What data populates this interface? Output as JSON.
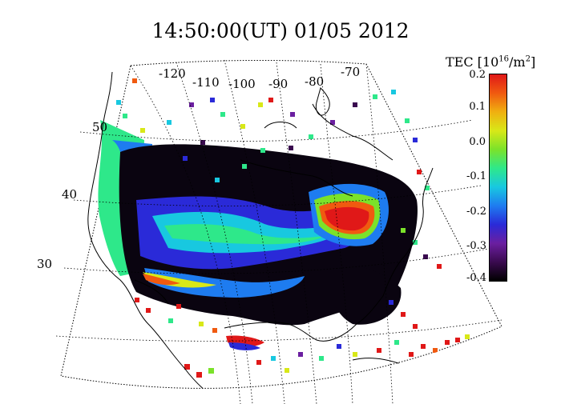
{
  "title": "14:50:00(UT)  01/05 2012",
  "colorbar": {
    "label_prefix": "TEC [10",
    "label_exp": "16",
    "label_suffix": "/m",
    "label_exp2": "2",
    "label_close": "]",
    "ticks": [
      "0.2",
      "0.1",
      "0.0",
      "-0.1",
      "-0.2",
      "-0.3",
      "-0.4"
    ],
    "range": [
      -0.4,
      0.2
    ],
    "colors": [
      "#000000",
      "#3a0a4f",
      "#6b1fa0",
      "#2a2ad8",
      "#1e7cf0",
      "#18c8e0",
      "#2ee88a",
      "#7be22a",
      "#d8e818",
      "#f0b010",
      "#f05a10",
      "#e01818"
    ]
  },
  "map": {
    "longitude_labels": [
      "-120",
      "-110",
      "-100",
      "-90",
      "-80",
      "-70"
    ],
    "latitude_labels": [
      "50",
      "40",
      "30"
    ],
    "graticule": "dotted",
    "coastlines": "black"
  }
}
